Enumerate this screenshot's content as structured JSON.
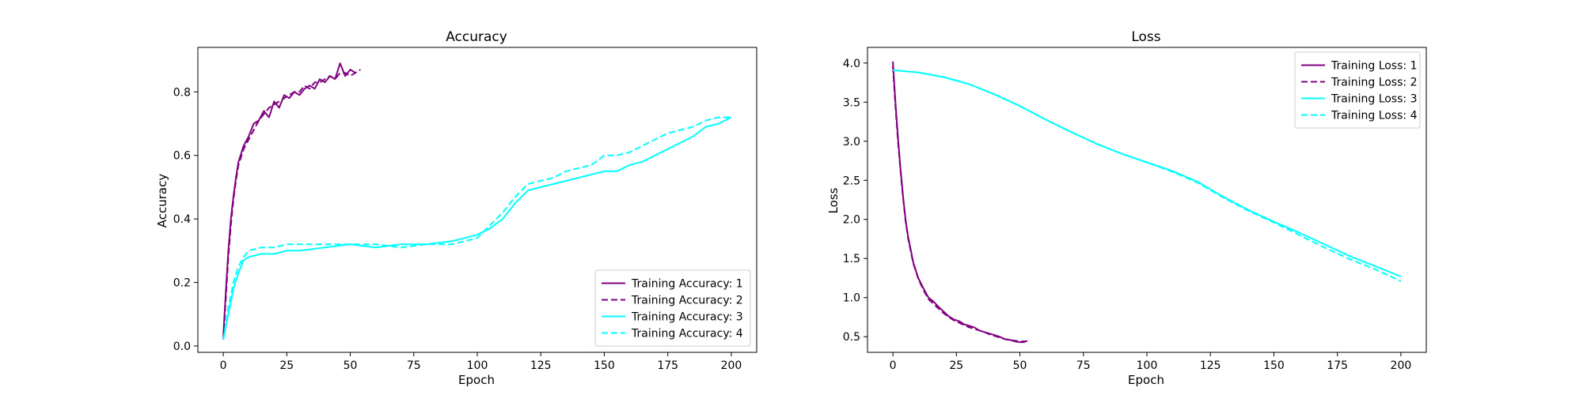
{
  "chart_data": [
    {
      "type": "line",
      "title": "Accuracy",
      "xlabel": "Epoch",
      "ylabel": "Accuracy",
      "xlim": [
        -10,
        210
      ],
      "ylim": [
        -0.02,
        0.94
      ],
      "xticks": [
        0,
        25,
        50,
        75,
        100,
        125,
        150,
        175,
        200
      ],
      "yticks": [
        0.0,
        0.2,
        0.4,
        0.6,
        0.8
      ],
      "ytick_labels": [
        "0.0",
        "0.2",
        "0.4",
        "0.6",
        "0.8"
      ],
      "grid": false,
      "legend_position": "lower-right",
      "series": [
        {
          "name": "Training Accuracy: 1",
          "color": "#800080",
          "dash": "solid",
          "x": [
            0,
            1,
            2,
            3,
            4,
            5,
            6,
            8,
            10,
            12,
            14,
            16,
            18,
            20,
            22,
            24,
            26,
            28,
            30,
            32,
            34,
            36,
            38,
            40,
            42,
            44,
            46,
            48,
            50,
            52
          ],
          "y": [
            0.03,
            0.17,
            0.3,
            0.4,
            0.47,
            0.53,
            0.58,
            0.63,
            0.66,
            0.7,
            0.71,
            0.74,
            0.72,
            0.77,
            0.75,
            0.79,
            0.78,
            0.8,
            0.79,
            0.81,
            0.82,
            0.81,
            0.84,
            0.83,
            0.85,
            0.84,
            0.89,
            0.85,
            0.87,
            0.86
          ]
        },
        {
          "name": "Training Accuracy: 2",
          "color": "#800080",
          "dash": "dashed",
          "x": [
            0,
            1,
            2,
            3,
            4,
            5,
            6,
            8,
            10,
            12,
            14,
            16,
            18,
            20,
            22,
            24,
            26,
            28,
            30,
            32,
            34,
            36,
            38,
            40,
            42,
            44,
            46,
            48,
            50,
            52,
            54
          ],
          "y": [
            0.02,
            0.15,
            0.28,
            0.38,
            0.46,
            0.52,
            0.57,
            0.62,
            0.65,
            0.68,
            0.71,
            0.73,
            0.75,
            0.76,
            0.77,
            0.78,
            0.79,
            0.8,
            0.8,
            0.82,
            0.81,
            0.83,
            0.83,
            0.84,
            0.85,
            0.84,
            0.86,
            0.86,
            0.85,
            0.86,
            0.87
          ]
        },
        {
          "name": "Training Accuracy: 3",
          "color": "#00ffff",
          "dash": "solid",
          "x": [
            0,
            2,
            4,
            6,
            8,
            10,
            15,
            20,
            25,
            30,
            40,
            50,
            60,
            70,
            80,
            90,
            95,
            100,
            105,
            110,
            115,
            120,
            125,
            130,
            135,
            140,
            145,
            150,
            155,
            160,
            165,
            170,
            175,
            180,
            185,
            190,
            195,
            200
          ],
          "y": [
            0.02,
            0.1,
            0.18,
            0.23,
            0.27,
            0.28,
            0.29,
            0.29,
            0.3,
            0.3,
            0.31,
            0.32,
            0.31,
            0.32,
            0.32,
            0.33,
            0.34,
            0.35,
            0.37,
            0.4,
            0.45,
            0.49,
            0.5,
            0.51,
            0.52,
            0.53,
            0.54,
            0.55,
            0.55,
            0.57,
            0.58,
            0.6,
            0.62,
            0.64,
            0.66,
            0.69,
            0.7,
            0.72
          ]
        },
        {
          "name": "Training Accuracy: 4",
          "color": "#00ffff",
          "dash": "dashed",
          "x": [
            0,
            2,
            4,
            6,
            8,
            10,
            15,
            20,
            25,
            30,
            40,
            50,
            60,
            70,
            80,
            90,
            95,
            100,
            105,
            110,
            115,
            120,
            125,
            130,
            135,
            140,
            145,
            150,
            155,
            160,
            165,
            170,
            175,
            180,
            185,
            190,
            195,
            200
          ],
          "y": [
            0.02,
            0.12,
            0.2,
            0.25,
            0.28,
            0.3,
            0.31,
            0.31,
            0.32,
            0.32,
            0.32,
            0.32,
            0.32,
            0.31,
            0.32,
            0.32,
            0.33,
            0.34,
            0.38,
            0.42,
            0.47,
            0.51,
            0.52,
            0.53,
            0.55,
            0.56,
            0.57,
            0.6,
            0.6,
            0.61,
            0.63,
            0.65,
            0.67,
            0.68,
            0.69,
            0.71,
            0.72,
            0.72
          ]
        }
      ]
    },
    {
      "type": "line",
      "title": "Loss",
      "xlabel": "Epoch",
      "ylabel": "Loss",
      "xlim": [
        -10,
        210
      ],
      "ylim": [
        0.3,
        4.2
      ],
      "xticks": [
        0,
        25,
        50,
        75,
        100,
        125,
        150,
        175,
        200
      ],
      "yticks": [
        0.5,
        1.0,
        1.5,
        2.0,
        2.5,
        3.0,
        3.5,
        4.0
      ],
      "ytick_labels": [
        "0.5",
        "1.0",
        "1.5",
        "2.0",
        "2.5",
        "3.0",
        "3.5",
        "4.0"
      ],
      "grid": false,
      "legend_position": "upper-right",
      "series": [
        {
          "name": "Training Loss: 1",
          "color": "#800080",
          "dash": "solid",
          "x": [
            0,
            1,
            2,
            3,
            4,
            5,
            6,
            8,
            10,
            12,
            14,
            16,
            18,
            20,
            22,
            24,
            26,
            28,
            30,
            32,
            34,
            36,
            38,
            40,
            42,
            44,
            46,
            48,
            50,
            52
          ],
          "y": [
            4.02,
            3.5,
            3.05,
            2.65,
            2.3,
            2.0,
            1.78,
            1.45,
            1.25,
            1.12,
            1.0,
            0.95,
            0.88,
            0.82,
            0.76,
            0.72,
            0.7,
            0.66,
            0.64,
            0.62,
            0.58,
            0.56,
            0.54,
            0.52,
            0.5,
            0.47,
            0.46,
            0.44,
            0.43,
            0.43
          ]
        },
        {
          "name": "Training Loss: 2",
          "color": "#800080",
          "dash": "dashed",
          "x": [
            0,
            1,
            2,
            3,
            4,
            5,
            6,
            8,
            10,
            12,
            14,
            16,
            18,
            20,
            22,
            24,
            26,
            28,
            30,
            32,
            34,
            36,
            38,
            40,
            42,
            44,
            46,
            48,
            50,
            52,
            54
          ],
          "y": [
            3.96,
            3.45,
            3.0,
            2.62,
            2.28,
            1.98,
            1.76,
            1.44,
            1.24,
            1.1,
            0.98,
            0.92,
            0.86,
            0.8,
            0.75,
            0.71,
            0.68,
            0.65,
            0.62,
            0.6,
            0.58,
            0.56,
            0.53,
            0.51,
            0.49,
            0.47,
            0.46,
            0.45,
            0.44,
            0.44,
            0.45
          ]
        },
        {
          "name": "Training Loss: 3",
          "color": "#00ffff",
          "dash": "solid",
          "x": [
            0,
            10,
            20,
            30,
            40,
            50,
            60,
            70,
            80,
            90,
            100,
            110,
            120,
            130,
            140,
            150,
            160,
            170,
            180,
            190,
            200
          ],
          "y": [
            3.91,
            3.88,
            3.82,
            3.73,
            3.6,
            3.45,
            3.28,
            3.12,
            2.97,
            2.84,
            2.73,
            2.62,
            2.48,
            2.29,
            2.12,
            1.97,
            1.83,
            1.68,
            1.53,
            1.4,
            1.27
          ]
        },
        {
          "name": "Training Loss: 4",
          "color": "#00ffff",
          "dash": "dashed",
          "x": [
            0,
            10,
            20,
            30,
            40,
            50,
            60,
            70,
            80,
            90,
            100,
            110,
            120,
            130,
            140,
            150,
            160,
            170,
            180,
            190,
            200
          ],
          "y": [
            3.91,
            3.88,
            3.82,
            3.73,
            3.6,
            3.45,
            3.28,
            3.12,
            2.97,
            2.84,
            2.73,
            2.61,
            2.47,
            2.28,
            2.11,
            1.96,
            1.8,
            1.64,
            1.49,
            1.36,
            1.21
          ]
        }
      ]
    }
  ]
}
